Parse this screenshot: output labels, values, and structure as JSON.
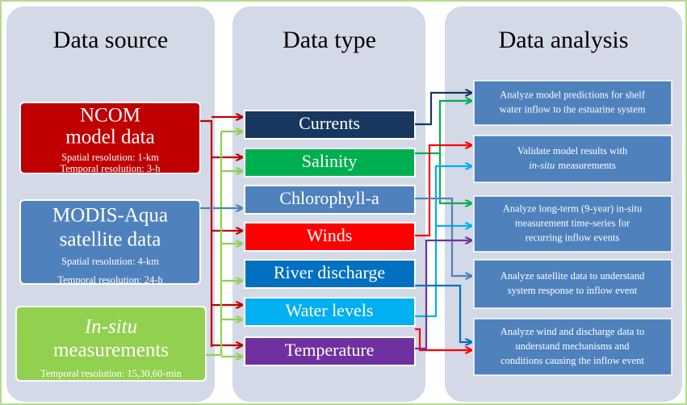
{
  "columns": [
    {
      "title": "Data source"
    },
    {
      "title": "Data type"
    },
    {
      "title": "Data analysis"
    }
  ],
  "sources": [
    {
      "lines": [
        "NCOM",
        "model data"
      ],
      "details": [
        "Spatial resolution: 1-km",
        "Temporal resolution: 3-h"
      ]
    },
    {
      "lines": [
        "MODIS-Aqua",
        "satellite data"
      ],
      "details": [
        "Spatial resolution: 4-km",
        "Temporal resolution: 24-h"
      ]
    },
    {
      "lines": [
        "In-situ",
        "measurements"
      ],
      "details": [
        "Temporal resolution: 15,30,60-min"
      ]
    }
  ],
  "types": [
    "Currents",
    "Salinity",
    "Chlorophyll-a",
    "Winds",
    "River discharge",
    "Water levels",
    "Temperature"
  ],
  "analyses": [
    {
      "lines": [
        "Analyze model predictions for shelf",
        "water inflow to the estuarine system"
      ]
    },
    {
      "lines": [
        "Validate model results with",
        [
          "in-situ",
          "measurements"
        ]
      ]
    },
    {
      "lines": [
        "Analyze long-term (9-year) in-situ",
        "measurement time-series for",
        "recurring inflow events"
      ]
    },
    {
      "lines": [
        "Analyze satellite data to understand",
        "system response to inflow event"
      ]
    },
    {
      "lines": [
        "Analyze wind and discharge data to",
        "understand mechanisms and",
        "conditions causing the inflow event"
      ]
    }
  ]
}
